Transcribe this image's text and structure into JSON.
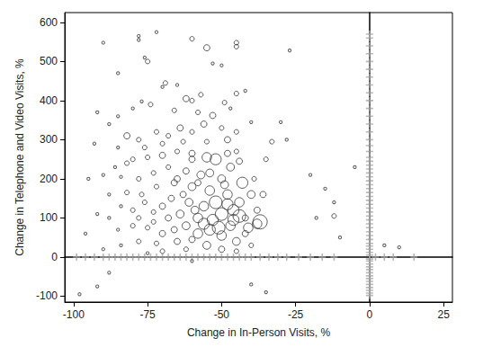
{
  "chart_data": {
    "type": "scatter",
    "x_label": "Change in In-Person Visits, %",
    "y_label": "Change in Telephone and Video Visits, %",
    "xlim": [
      -103,
      28
    ],
    "xticks": [
      -100,
      -75,
      -50,
      -25,
      0,
      25
    ],
    "ylim": [
      -115,
      625
    ],
    "yticks": [
      -100,
      0,
      100,
      200,
      300,
      400,
      500,
      600
    ],
    "grid": false,
    "series": [
      {
        "marker": "cross",
        "color": "#a6a6a6",
        "points": [
          [
            -99,
            0
          ],
          [
            -96,
            0
          ],
          [
            -93,
            0
          ],
          [
            -90,
            0
          ],
          [
            -88,
            0
          ],
          [
            -86,
            0
          ],
          [
            -84,
            0
          ],
          [
            -82,
            0
          ],
          [
            -80,
            0
          ],
          [
            -78,
            0
          ],
          [
            -76,
            0
          ],
          [
            -74,
            0
          ],
          [
            -72,
            0
          ],
          [
            -70,
            0
          ],
          [
            -68,
            0
          ],
          [
            -66,
            0
          ],
          [
            -64,
            0
          ],
          [
            -62,
            0
          ],
          [
            -60,
            0
          ],
          [
            -58,
            0
          ],
          [
            -56,
            0
          ],
          [
            -54,
            0
          ],
          [
            -52,
            0
          ],
          [
            -50,
            0
          ],
          [
            -48,
            0
          ],
          [
            -46,
            0
          ],
          [
            -44,
            0
          ],
          [
            -42,
            0
          ],
          [
            -40,
            0
          ],
          [
            -37,
            0
          ],
          [
            -34,
            0
          ],
          [
            -31,
            0
          ],
          [
            -28,
            0
          ],
          [
            -24,
            0
          ],
          [
            -20,
            0
          ],
          [
            -16,
            0
          ],
          [
            -12,
            0
          ],
          [
            2,
            0
          ],
          [
            5,
            0
          ],
          [
            8,
            0
          ],
          [
            15,
            0
          ],
          [
            0,
            -98
          ],
          [
            0,
            -92
          ],
          [
            0,
            -85
          ],
          [
            0,
            -78
          ],
          [
            0,
            -70
          ],
          [
            0,
            -62
          ],
          [
            0,
            -55
          ],
          [
            0,
            -48
          ],
          [
            0,
            -40
          ],
          [
            0,
            -32
          ],
          [
            0,
            -25
          ],
          [
            0,
            -18
          ],
          [
            0,
            -10
          ],
          [
            0,
            -5
          ],
          [
            0,
            5
          ],
          [
            0,
            12
          ],
          [
            0,
            20
          ],
          [
            0,
            28
          ],
          [
            0,
            35
          ],
          [
            0,
            45
          ],
          [
            0,
            55
          ],
          [
            0,
            65
          ],
          [
            0,
            75
          ],
          [
            0,
            85
          ],
          [
            0,
            95
          ],
          [
            0,
            105
          ],
          [
            0,
            115
          ],
          [
            0,
            125
          ],
          [
            0,
            135
          ],
          [
            0,
            145
          ],
          [
            0,
            155
          ],
          [
            0,
            165
          ],
          [
            0,
            175
          ],
          [
            0,
            185
          ],
          [
            0,
            195
          ],
          [
            0,
            205
          ],
          [
            0,
            215
          ],
          [
            0,
            225
          ],
          [
            0,
            235
          ],
          [
            0,
            245
          ],
          [
            0,
            255
          ],
          [
            0,
            270
          ],
          [
            0,
            285
          ],
          [
            0,
            300
          ],
          [
            0,
            320
          ],
          [
            0,
            340
          ],
          [
            0,
            360
          ],
          [
            0,
            380
          ],
          [
            0,
            400
          ],
          [
            0,
            420
          ],
          [
            0,
            440
          ],
          [
            0,
            460
          ],
          [
            0,
            480
          ],
          [
            0,
            500
          ],
          [
            0,
            520
          ],
          [
            0,
            540
          ],
          [
            0,
            560
          ],
          [
            0,
            570
          ]
        ]
      },
      {
        "marker": "circle",
        "color": "#333333",
        "points": [
          [
            -78,
            565,
            1
          ],
          [
            -72,
            575,
            1
          ],
          [
            -78,
            555,
            1
          ],
          [
            -60,
            558,
            2
          ],
          [
            -55,
            535,
            3
          ],
          [
            -45,
            548,
            2
          ],
          [
            -45,
            538,
            2
          ],
          [
            -27,
            528,
            1
          ],
          [
            -90,
            548,
            1
          ],
          [
            -85,
            470,
            1
          ],
          [
            -76,
            510,
            1
          ],
          [
            -75,
            500,
            2
          ],
          [
            -53,
            495,
            1
          ],
          [
            -50,
            490,
            1
          ],
          [
            -69,
            445,
            2
          ],
          [
            -70,
            435,
            1
          ],
          [
            -65,
            440,
            1
          ],
          [
            -62,
            405,
            3
          ],
          [
            -60,
            400,
            2
          ],
          [
            -57,
            415,
            2
          ],
          [
            -49,
            395,
            2
          ],
          [
            -47,
            380,
            1
          ],
          [
            -45,
            418,
            2
          ],
          [
            -42,
            425,
            1
          ],
          [
            -77,
            398,
            1
          ],
          [
            -74,
            390,
            2
          ],
          [
            -80,
            380,
            1
          ],
          [
            -85,
            360,
            1
          ],
          [
            -92,
            370,
            1
          ],
          [
            -88,
            340,
            1
          ],
          [
            -66,
            375,
            2
          ],
          [
            -58,
            370,
            2
          ],
          [
            -53,
            362,
            3
          ],
          [
            -40,
            345,
            1
          ],
          [
            -30,
            345,
            1
          ],
          [
            -33,
            295,
            2
          ],
          [
            -28,
            300,
            1
          ],
          [
            -20,
            210,
            1
          ],
          [
            -15,
            175,
            1
          ],
          [
            -12,
            140,
            1
          ],
          [
            -12,
            105,
            2
          ],
          [
            -18,
            100,
            1
          ],
          [
            -10,
            50,
            1
          ],
          [
            -82,
            310,
            3
          ],
          [
            -78,
            300,
            2
          ],
          [
            -72,
            320,
            2
          ],
          [
            -68,
            310,
            2
          ],
          [
            -64,
            330,
            3
          ],
          [
            -60,
            320,
            2
          ],
          [
            -56,
            340,
            3
          ],
          [
            -50,
            330,
            2
          ],
          [
            -45,
            320,
            2
          ],
          [
            -48,
            300,
            3
          ],
          [
            -55,
            295,
            2
          ],
          [
            -63,
            295,
            2
          ],
          [
            -70,
            290,
            2
          ],
          [
            -76,
            280,
            2
          ],
          [
            -85,
            280,
            1
          ],
          [
            -93,
            290,
            1
          ],
          [
            -80,
            250,
            2
          ],
          [
            -75,
            255,
            2
          ],
          [
            -70,
            260,
            3
          ],
          [
            -65,
            270,
            2
          ],
          [
            -60,
            265,
            3
          ],
          [
            -55,
            255,
            5
          ],
          [
            -52,
            250,
            6
          ],
          [
            -47,
            230,
            4
          ],
          [
            -43,
            190,
            6
          ],
          [
            -40,
            160,
            4
          ],
          [
            -38,
            120,
            3
          ],
          [
            -42,
            100,
            3
          ],
          [
            -44,
            140,
            5
          ],
          [
            -50,
            200,
            4
          ],
          [
            -57,
            210,
            4
          ],
          [
            -62,
            220,
            3
          ],
          [
            -68,
            230,
            2
          ],
          [
            -73,
            215,
            2
          ],
          [
            -78,
            200,
            2
          ],
          [
            -84,
            205,
            1
          ],
          [
            -90,
            210,
            1
          ],
          [
            -95,
            200,
            1
          ],
          [
            -88,
            160,
            1
          ],
          [
            -82,
            165,
            2
          ],
          [
            -77,
            160,
            2
          ],
          [
            -72,
            180,
            2
          ],
          [
            -66,
            190,
            3
          ],
          [
            -60,
            180,
            4
          ],
          [
            -54,
            170,
            5
          ],
          [
            -48,
            160,
            5
          ],
          [
            -46,
            120,
            6
          ],
          [
            -50,
            110,
            7
          ],
          [
            -53,
            95,
            6
          ],
          [
            -56,
            130,
            5
          ],
          [
            -58,
            100,
            5
          ],
          [
            -61,
            140,
            4
          ],
          [
            -64,
            110,
            4
          ],
          [
            -67,
            150,
            3
          ],
          [
            -70,
            130,
            3
          ],
          [
            -73,
            115,
            2
          ],
          [
            -76,
            140,
            2
          ],
          [
            -80,
            120,
            2
          ],
          [
            -84,
            130,
            1
          ],
          [
            -88,
            100,
            1
          ],
          [
            -92,
            110,
            1
          ],
          [
            -96,
            60,
            1
          ],
          [
            -85,
            70,
            1
          ],
          [
            -80,
            80,
            2
          ],
          [
            -75,
            75,
            2
          ],
          [
            -70,
            60,
            3
          ],
          [
            -66,
            70,
            3
          ],
          [
            -62,
            80,
            4
          ],
          [
            -58,
            60,
            5
          ],
          [
            -54,
            70,
            6
          ],
          [
            -50,
            55,
            5
          ],
          [
            -47,
            80,
            5
          ],
          [
            -45,
            40,
            4
          ],
          [
            -42,
            60,
            3
          ],
          [
            -40,
            30,
            2
          ],
          [
            -38,
            85,
            5
          ],
          [
            -36,
            160,
            3
          ],
          [
            -35,
            250,
            2
          ],
          [
            -44,
            245,
            3
          ],
          [
            -48,
            265,
            3
          ],
          [
            -60,
            45,
            3
          ],
          [
            -65,
            40,
            3
          ],
          [
            -72,
            35,
            2
          ],
          [
            -78,
            40,
            2
          ],
          [
            -84,
            30,
            1
          ],
          [
            -90,
            20,
            1
          ],
          [
            -55,
            30,
            4
          ],
          [
            -50,
            20,
            3
          ],
          [
            -45,
            15,
            2
          ],
          [
            -62,
            20,
            2
          ],
          [
            -70,
            15,
            2
          ],
          [
            -75,
            10,
            1
          ],
          [
            -88,
            -40,
            1
          ],
          [
            -98,
            -95,
            1
          ],
          [
            -92,
            -75,
            1
          ],
          [
            -60,
            -10,
            1
          ],
          [
            -40,
            -70,
            1
          ],
          [
            -35,
            -90,
            1
          ],
          [
            -5,
            230,
            1
          ],
          [
            5,
            30,
            1
          ],
          [
            10,
            25,
            1
          ],
          [
            -60,
            250,
            3
          ],
          [
            -65,
            200,
            3
          ],
          [
            -52,
            140,
            7
          ],
          [
            -48,
            135,
            6
          ],
          [
            -56,
            85,
            6
          ],
          [
            -51,
            75,
            7
          ],
          [
            -46,
            95,
            6
          ],
          [
            -59,
            120,
            4
          ],
          [
            -63,
            160,
            3
          ],
          [
            -68,
            100,
            3
          ],
          [
            -73,
            90,
            2
          ],
          [
            -78,
            100,
            2
          ],
          [
            -82,
            240,
            2
          ],
          [
            -86,
            230,
            1
          ],
          [
            -58,
            190,
            3
          ],
          [
            -54,
            215,
            4
          ],
          [
            -49,
            185,
            4
          ],
          [
            -45,
            270,
            2
          ],
          [
            -39,
            200,
            2
          ],
          [
            -37,
            90,
            8
          ],
          [
            -41,
            75,
            5
          ],
          [
            -44,
            105,
            7
          ]
        ]
      }
    ]
  }
}
